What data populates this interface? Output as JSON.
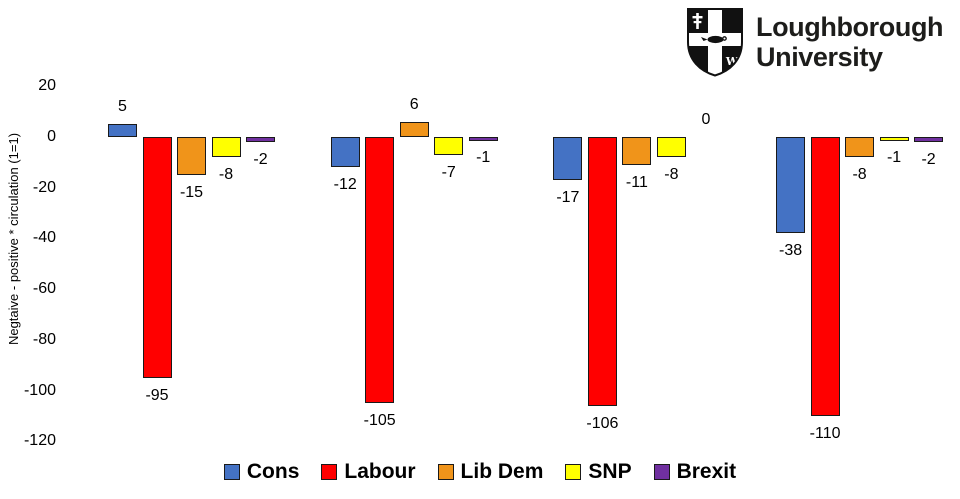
{
  "logo": {
    "line1": "Loughborough",
    "line2": "University"
  },
  "chart_data": {
    "type": "bar",
    "ylabel": "Negtaive - positive * circulation (1=1)",
    "ylim": [
      -120,
      20
    ],
    "yticks": [
      20,
      0,
      -20,
      -40,
      -60,
      -80,
      -100,
      -120
    ],
    "grid": false,
    "axis_lines": false,
    "data_labels_shown": true,
    "category_labels_shown": false,
    "n_groups": 4,
    "legend_position": "bottom",
    "series": [
      {
        "name": "Cons",
        "color": "#4472C4",
        "values": [
          5,
          -12,
          -17,
          -38
        ]
      },
      {
        "name": "Labour",
        "color": "#FF0000",
        "values": [
          -95,
          -105,
          -106,
          -110
        ]
      },
      {
        "name": "Lib Dem",
        "color": "#F0941A",
        "values": [
          -15,
          6,
          -11,
          -8
        ]
      },
      {
        "name": "SNP",
        "color": "#FFFF00",
        "values": [
          -8,
          -7,
          -8,
          -1
        ]
      },
      {
        "name": "Brexit",
        "color": "#7030A0",
        "values": [
          -2,
          -1,
          0,
          -2
        ]
      }
    ]
  },
  "colors": {
    "bar_border": "#1a1a1a",
    "label_text": "#000000",
    "logo_text": "#1d1d1b",
    "background": "#ffffff"
  }
}
